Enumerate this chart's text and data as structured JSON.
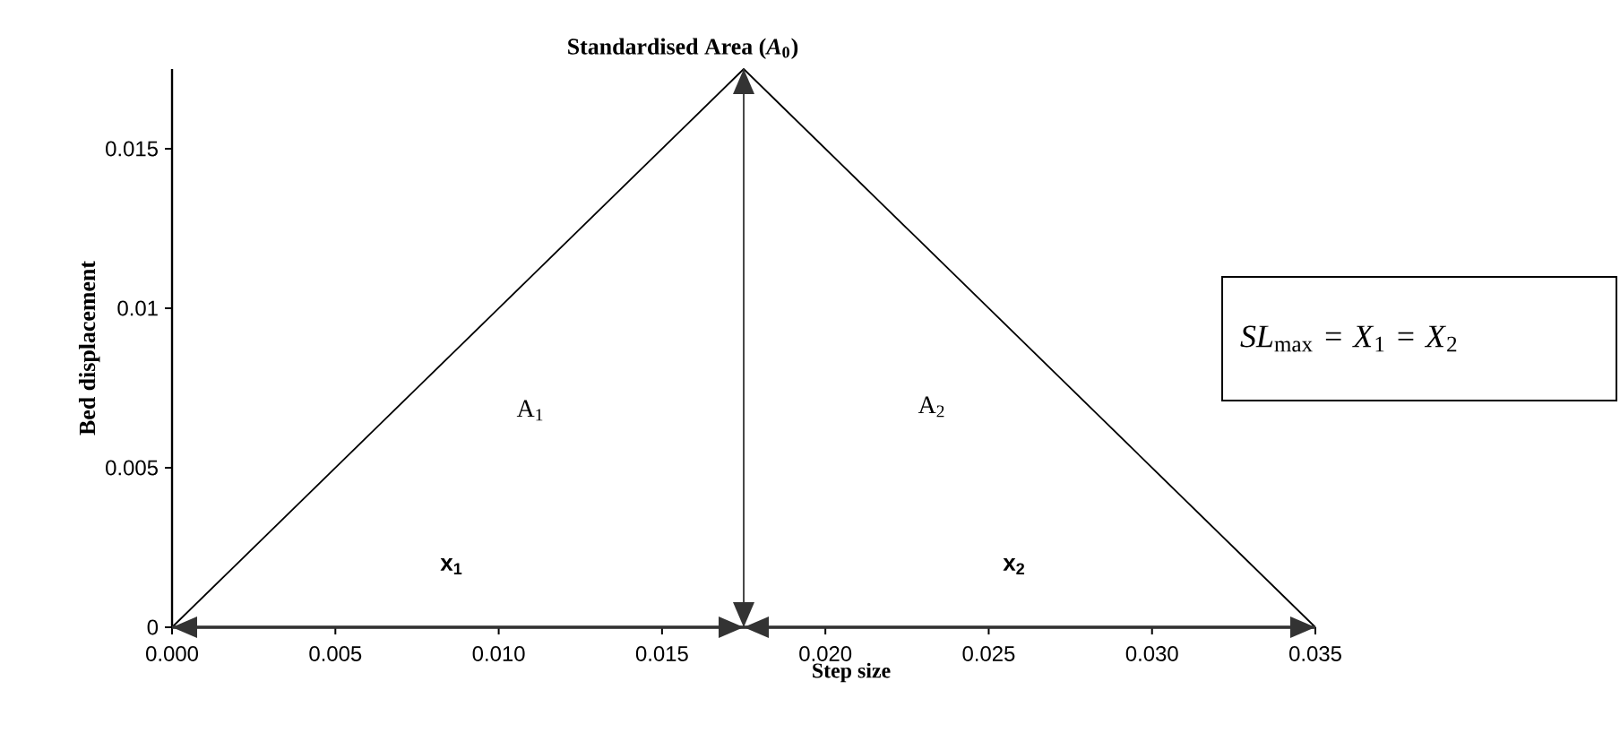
{
  "chart_data": {
    "type": "line",
    "title": "Standardised Area (*A*$_{0}$)",
    "xlabel": "Step size",
    "ylabel": "Bed displacement",
    "x": [
      0,
      0.0175,
      0.035
    ],
    "series": [
      {
        "color": "#000000",
        "values": [
          0,
          0.0175,
          0
        ]
      }
    ],
    "xlim": [
      0,
      0.035
    ],
    "ylim": [
      0,
      0.0175
    ],
    "xticks": [
      {
        "value": 0,
        "label": "0.000"
      },
      0.005,
      {
        "value": 0.01,
        "label": "0.010"
      },
      0.015,
      {
        "value": 0.02,
        "label": "0.020"
      },
      0.025,
      {
        "value": 0.03,
        "label": "0.030"
      },
      0.035
    ],
    "yticks": [
      0,
      0.005,
      0.01,
      0.015
    ],
    "annotations": [
      "A$_{1}$",
      "A$_{2}$",
      "x$_{1}$",
      "x$_{2}$",
      "*SL*$_{max}$ = *X*$_{1}$ = *X*$_{2}$"
    ],
    "ref_lines": [
      {
        "axis": "x",
        "value": 0.0175,
        "color": "#333333"
      },
      {
        "axis": "y",
        "value": 0,
        "color": "#333333"
      }
    ],
    "grid": false,
    "marker": "none",
    "line_style": "solid"
  }
}
